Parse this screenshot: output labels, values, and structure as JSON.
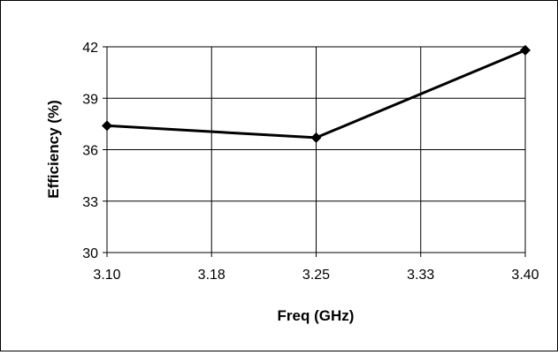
{
  "chart_data": {
    "type": "line",
    "title": "",
    "xlabel": "Freq (GHz)",
    "ylabel": "Efficiency (%)",
    "x_ticks": [
      "3.10",
      "3.18",
      "3.25",
      "3.33",
      "3.40"
    ],
    "y_ticks": [
      "30",
      "33",
      "36",
      "39",
      "42"
    ],
    "xlim": [
      3.1,
      3.4
    ],
    "ylim": [
      30,
      42
    ],
    "grid": true,
    "legend": "none",
    "series": [
      {
        "x": [
          3.1,
          3.25,
          3.4
        ],
        "y": [
          37.4,
          36.7,
          41.8
        ],
        "color": "#000000",
        "marker": "diamond"
      }
    ]
  }
}
